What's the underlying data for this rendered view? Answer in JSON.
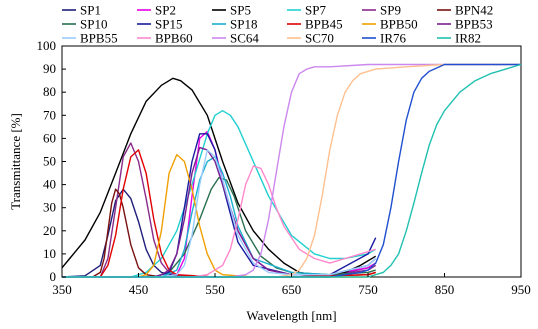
{
  "chart_data": {
    "type": "line",
    "title": "",
    "xlabel": "Wavelength [nm]",
    "ylabel": "Transmittance [%]",
    "xlim": [
      350,
      950
    ],
    "ylim": [
      0,
      100
    ],
    "xticks": [
      350,
      450,
      550,
      650,
      750,
      850,
      950
    ],
    "yticks": [
      0,
      10,
      20,
      30,
      40,
      50,
      60,
      70,
      80,
      90,
      100
    ],
    "grid": false,
    "legend_position": "top",
    "series": [
      {
        "name": "SP1",
        "color": "#1f1f7a",
        "x": [
          350,
          380,
          400,
          410,
          420,
          430,
          440,
          450,
          460,
          470,
          480,
          500,
          550,
          600,
          650,
          700,
          750,
          760
        ],
        "y": [
          0,
          0.5,
          5,
          18,
          33,
          38,
          34,
          24,
          12,
          5,
          2,
          0.5,
          0,
          0,
          0,
          0.5,
          4,
          6
        ]
      },
      {
        "name": "SP2",
        "color": "#e600e6",
        "x": [
          350,
          480,
          500,
          510,
          520,
          530,
          540,
          550,
          560,
          570,
          580,
          600,
          620,
          650,
          700,
          750,
          760
        ],
        "y": [
          0,
          0,
          1,
          8,
          35,
          60,
          63,
          55,
          42,
          30,
          20,
          8,
          3,
          1,
          1,
          4,
          6
        ]
      },
      {
        "name": "SP5",
        "color": "#000000",
        "x": [
          350,
          360,
          370,
          380,
          400,
          420,
          440,
          460,
          480,
          495,
          505,
          520,
          540,
          560,
          580,
          600,
          620,
          640,
          660,
          680,
          700,
          720,
          740,
          760
        ],
        "y": [
          4,
          8,
          12,
          16,
          28,
          45,
          62,
          76,
          83,
          86,
          85,
          81,
          70,
          50,
          32,
          20,
          12,
          6,
          2,
          1,
          1,
          2,
          5,
          9
        ]
      },
      {
        "name": "SP7",
        "color": "#20d0d0",
        "x": [
          350,
          440,
          460,
          480,
          500,
          520,
          540,
          550,
          560,
          570,
          580,
          600,
          620,
          650,
          680,
          700,
          720,
          750,
          760
        ],
        "y": [
          0,
          0,
          2,
          8,
          20,
          40,
          62,
          70,
          72,
          70,
          65,
          50,
          35,
          18,
          10,
          8,
          8,
          10,
          12
        ]
      },
      {
        "name": "SP9",
        "color": "#8a2a8a",
        "x": [
          350,
          400,
          410,
          420,
          430,
          440,
          450,
          460,
          470,
          480,
          490,
          500,
          550,
          600,
          650,
          700,
          750,
          760
        ],
        "y": [
          0,
          0,
          8,
          30,
          52,
          58,
          50,
          34,
          16,
          6,
          2,
          0.5,
          0,
          0,
          0,
          0.5,
          3,
          5
        ]
      },
      {
        "name": "BPN42",
        "color": "#7a1010",
        "x": [
          350,
          390,
          400,
          405,
          410,
          415,
          420,
          425,
          430,
          440,
          450,
          460,
          480,
          550,
          650,
          750,
          760
        ],
        "y": [
          0,
          0,
          2,
          8,
          20,
          32,
          38,
          36,
          30,
          14,
          4,
          1,
          0,
          0,
          0,
          1,
          2
        ]
      },
      {
        "name": "SP10",
        "color": "#2a6e4e",
        "x": [
          350,
          470,
          490,
          510,
          530,
          545,
          555,
          565,
          575,
          590,
          610,
          630,
          650,
          700,
          750,
          760
        ],
        "y": [
          0,
          0,
          2,
          10,
          25,
          38,
          43,
          42,
          35,
          20,
          9,
          4,
          2,
          1,
          2,
          3
        ]
      },
      {
        "name": "SP15",
        "color": "#1a1aa0",
        "x": [
          350,
          470,
          490,
          500,
          510,
          520,
          530,
          540,
          550,
          560,
          580,
          600,
          650,
          700,
          750,
          760
        ],
        "y": [
          0,
          0,
          2,
          10,
          30,
          50,
          62,
          62,
          55,
          40,
          15,
          5,
          1,
          1,
          10,
          17
        ]
      },
      {
        "name": "SP18",
        "color": "#1ab0d0",
        "x": [
          350,
          480,
          500,
          510,
          520,
          530,
          540,
          550,
          560,
          570,
          580,
          600,
          650,
          700,
          750,
          760
        ],
        "y": [
          0,
          0,
          3,
          12,
          28,
          42,
          50,
          52,
          45,
          35,
          22,
          8,
          2,
          1,
          5,
          8
        ]
      },
      {
        "name": "BPB45",
        "color": "#e00000",
        "x": [
          350,
          400,
          410,
          420,
          430,
          440,
          450,
          460,
          470,
          480,
          490,
          500,
          550,
          650,
          750,
          760
        ],
        "y": [
          0,
          0,
          5,
          18,
          38,
          52,
          55,
          45,
          25,
          10,
          3,
          1,
          0,
          0,
          1,
          2
        ]
      },
      {
        "name": "BPB50",
        "color": "#f0a000",
        "x": [
          350,
          450,
          460,
          470,
          480,
          490,
          500,
          510,
          520,
          530,
          540,
          550,
          560,
          600,
          650,
          750,
          760
        ],
        "y": [
          0,
          0,
          1,
          5,
          20,
          45,
          53,
          50,
          38,
          22,
          10,
          3,
          1,
          0,
          0,
          0,
          1
        ]
      },
      {
        "name": "BPB53",
        "color": "#7a2090",
        "x": [
          350,
          470,
          480,
          490,
          500,
          510,
          520,
          530,
          540,
          550,
          560,
          570,
          580,
          600,
          620,
          650,
          700,
          750,
          760
        ],
        "y": [
          0,
          0,
          1,
          3,
          10,
          25,
          45,
          56,
          55,
          50,
          40,
          30,
          20,
          8,
          3,
          1,
          1,
          5,
          8
        ]
      },
      {
        "name": "BPB55",
        "color": "#99ccff",
        "x": [
          350,
          480,
          500,
          510,
          520,
          530,
          540,
          550,
          560,
          570,
          580,
          600,
          620,
          650,
          700,
          750,
          760
        ],
        "y": [
          0,
          0,
          1,
          5,
          18,
          40,
          55,
          52,
          42,
          30,
          18,
          6,
          2,
          1,
          1,
          5,
          8
        ]
      },
      {
        "name": "BPB60",
        "color": "#ff88cc",
        "x": [
          350,
          520,
          540,
          560,
          570,
          580,
          590,
          600,
          610,
          620,
          630,
          640,
          660,
          680,
          700,
          720,
          740,
          760
        ],
        "y": [
          0,
          0,
          1,
          5,
          12,
          25,
          40,
          48,
          47,
          40,
          30,
          22,
          12,
          8,
          6,
          8,
          10,
          12
        ]
      },
      {
        "name": "SC64",
        "color": "#cc88ee",
        "x": [
          350,
          570,
          590,
          600,
          610,
          620,
          630,
          640,
          650,
          660,
          670,
          680,
          690,
          700,
          750,
          850,
          950
        ],
        "y": [
          0,
          0,
          1,
          3,
          10,
          25,
          45,
          65,
          80,
          88,
          90,
          91,
          91,
          91,
          92,
          92,
          92
        ]
      },
      {
        "name": "SC70",
        "color": "#ffc090",
        "x": [
          350,
          630,
          650,
          660,
          670,
          680,
          690,
          700,
          710,
          720,
          730,
          740,
          760,
          800,
          850,
          950
        ],
        "y": [
          0,
          0,
          1,
          3,
          8,
          18,
          35,
          55,
          70,
          80,
          85,
          88,
          90,
          91,
          92,
          92
        ]
      },
      {
        "name": "IR76",
        "color": "#2050d0",
        "x": [
          350,
          700,
          720,
          740,
          750,
          760,
          770,
          780,
          790,
          800,
          810,
          820,
          830,
          850,
          900,
          950
        ],
        "y": [
          0,
          0,
          1,
          2,
          3,
          6,
          14,
          30,
          50,
          68,
          80,
          86,
          89,
          92,
          92,
          92
        ]
      },
      {
        "name": "IR82",
        "color": "#20c0b0",
        "x": [
          350,
          750,
          770,
          780,
          790,
          800,
          810,
          820,
          830,
          840,
          850,
          870,
          890,
          910,
          930,
          950
        ],
        "y": [
          0,
          0,
          2,
          5,
          10,
          20,
          32,
          45,
          57,
          66,
          72,
          80,
          85,
          88,
          90,
          92
        ]
      }
    ]
  }
}
